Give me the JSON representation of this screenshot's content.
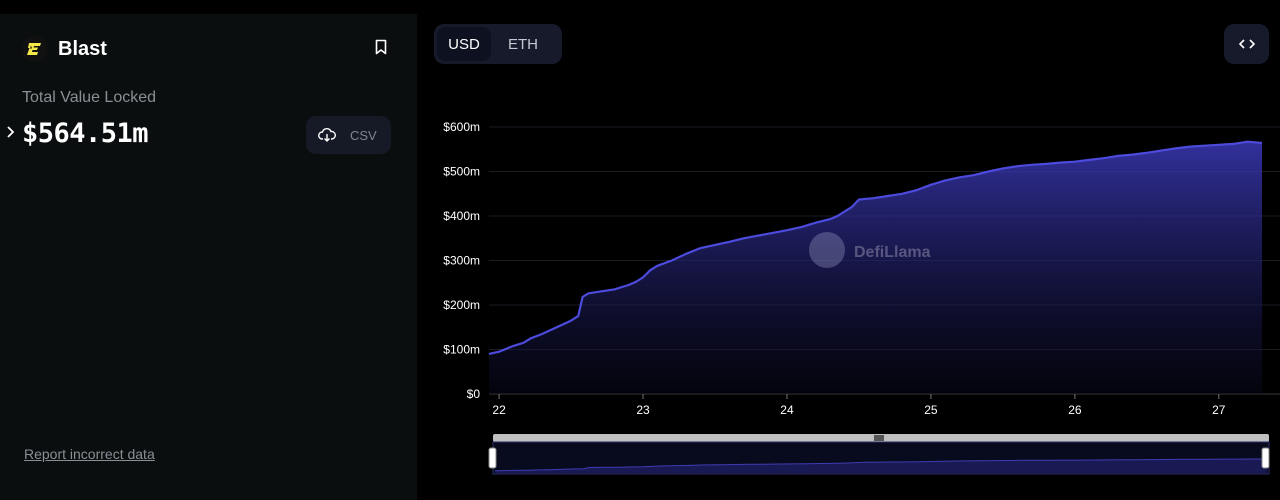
{
  "protocol": {
    "name": "Blast",
    "logo_icon": "blast-logo-icon"
  },
  "tvl": {
    "label": "Total Value Locked",
    "value": "$564.51m",
    "csv_label": "CSV"
  },
  "report_link": "Report incorrect data",
  "currency_toggle": {
    "options": [
      "USD",
      "ETH"
    ],
    "selected": "USD"
  },
  "watermark": "DefiLlama",
  "colors": {
    "accent": "#4c4bdd",
    "panel_bg": "#0b0e0f",
    "button_bg": "#161a2b"
  },
  "chart_data": {
    "type": "area",
    "title": "",
    "xlabel": "",
    "ylabel": "",
    "y_ticks": [
      "$0",
      "$100m",
      "$200m",
      "$300m",
      "$400m",
      "$500m",
      "$600m"
    ],
    "x_ticks": [
      "22",
      "23",
      "24",
      "25",
      "26",
      "27"
    ],
    "ylim": [
      0,
      600
    ],
    "xlim": [
      21.93,
      27.3
    ],
    "grid": true,
    "series": [
      {
        "x": [
          21.93,
          22.0,
          22.1,
          22.17,
          22.22,
          22.3,
          22.4,
          22.5,
          22.55,
          22.58,
          22.62,
          22.7,
          22.8,
          22.9,
          22.95,
          23.0,
          23.05,
          23.1,
          23.2,
          23.3,
          23.4,
          23.5,
          23.6,
          23.7,
          23.8,
          23.9,
          24.0,
          24.1,
          24.2,
          24.3,
          24.35,
          24.4,
          24.45,
          24.5,
          24.6,
          24.7,
          24.8,
          24.9,
          25.0,
          25.1,
          25.2,
          25.3,
          25.4,
          25.5,
          25.6,
          25.7,
          25.8,
          25.9,
          26.0,
          26.1,
          26.2,
          26.3,
          26.4,
          26.5,
          26.6,
          26.7,
          26.8,
          26.9,
          27.0,
          27.1,
          27.2,
          27.3
        ],
        "y": [
          90,
          95,
          108,
          115,
          125,
          135,
          150,
          165,
          175,
          218,
          226,
          230,
          235,
          245,
          252,
          262,
          278,
          288,
          300,
          315,
          328,
          335,
          342,
          350,
          356,
          362,
          368,
          375,
          385,
          393,
          400,
          410,
          420,
          437,
          440,
          445,
          450,
          458,
          470,
          480,
          487,
          492,
          500,
          507,
          512,
          515,
          517,
          520,
          522,
          526,
          530,
          535,
          538,
          542,
          547,
          552,
          556,
          558,
          560,
          562,
          567,
          564
        ]
      }
    ]
  }
}
